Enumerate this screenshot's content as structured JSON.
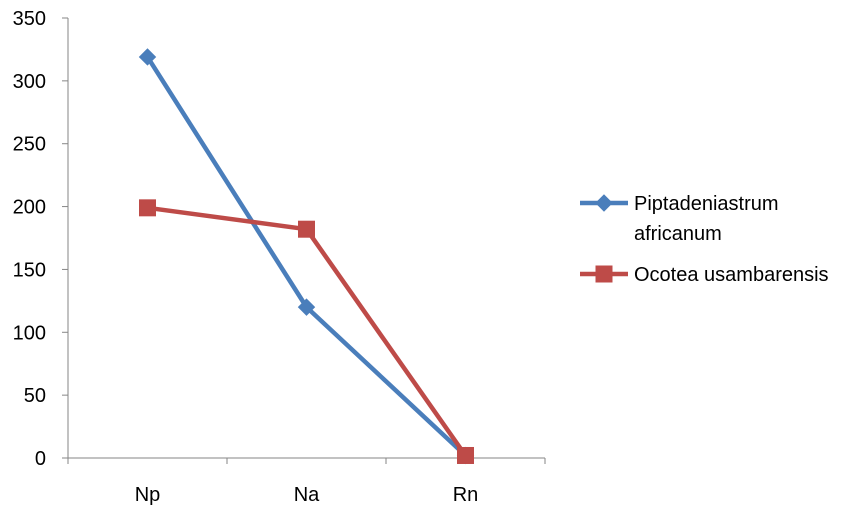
{
  "chart_data": {
    "type": "line",
    "title": "",
    "xlabel": "",
    "ylabel": "",
    "categories": [
      "Np",
      "Na",
      "Rn"
    ],
    "ylim": [
      0,
      350
    ],
    "yticks": [
      0,
      50,
      100,
      150,
      200,
      250,
      300,
      350
    ],
    "grid": false,
    "legend_position": "right",
    "series": [
      {
        "name": "Piptadeniastrum africanum",
        "legend_lines": [
          "Piptadeniastrum",
          "africanum"
        ],
        "marker": "diamond",
        "color": "#4a7ebb",
        "values": [
          319,
          120,
          2
        ]
      },
      {
        "name": "Ocotea usambarensis",
        "legend_lines": [
          "Ocotea usambarensis"
        ],
        "marker": "square",
        "color": "#be4b48",
        "values": [
          199,
          182,
          2
        ]
      }
    ]
  }
}
